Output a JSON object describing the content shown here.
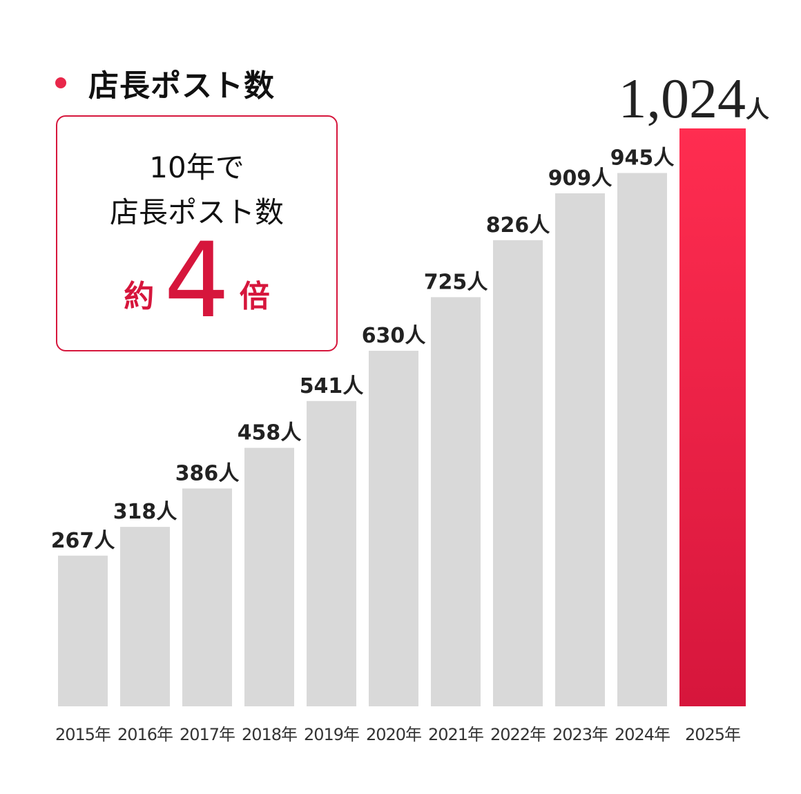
{
  "title": "店長ポスト数",
  "callout": {
    "line1": "10年で",
    "line2": "店長ポスト数",
    "prefix": "約",
    "multiplier": "4",
    "suffix": "倍"
  },
  "colors": {
    "accent": "#d6163c",
    "bar": "#d9d9d9",
    "highlight_top": "#ff2d50",
    "highlight_bottom": "#d6163c"
  },
  "chart_data": {
    "type": "bar",
    "categories": [
      "2015年",
      "2016年",
      "2017年",
      "2018年",
      "2019年",
      "2020年",
      "2021年",
      "2022年",
      "2023年",
      "2024年",
      "2025年"
    ],
    "values": [
      267,
      318,
      386,
      458,
      541,
      630,
      725,
      826,
      909,
      945,
      1024
    ],
    "data_labels": [
      "267",
      "318",
      "386",
      "458",
      "541",
      "630",
      "725",
      "826",
      "909",
      "945",
      "1,024"
    ],
    "unit": "人",
    "highlight_index": 10,
    "ylim": [
      0,
      1024
    ],
    "grid": false
  }
}
